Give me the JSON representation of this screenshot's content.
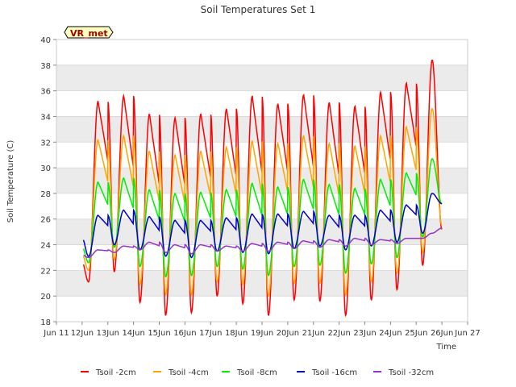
{
  "chart_data": {
    "type": "line",
    "title": "Soil Temperatures Set 1",
    "xlabel": "Time",
    "ylabel": "Soil Temperature (C)",
    "site_label": "VR_met",
    "xlim": [
      "Jun 11",
      "Jun 27"
    ],
    "ylim": [
      18,
      40
    ],
    "x_ticks": [
      "Jun 11",
      "12Jun",
      "13Jun",
      "14Jun",
      "15Jun",
      "16Jun",
      "17Jun",
      "18Jun",
      "19Jun",
      "20Jun",
      "21Jun",
      "22Jun",
      "23Jun",
      "24Jun",
      "25Jun",
      "26Jun",
      "Jun 27"
    ],
    "y_ticks": [
      18,
      20,
      22,
      24,
      26,
      28,
      30,
      32,
      34,
      36,
      38,
      40
    ],
    "grid": true,
    "legend_position": "bottom",
    "series": [
      {
        "name": "Tsoil -2cm",
        "color": "#ff0000",
        "daily_max": [
          35.2,
          35.6,
          34.2,
          33.9,
          34.2,
          34.6,
          35.6,
          35.0,
          35.7,
          35.1,
          34.8,
          35.9,
          36.6,
          38.4
        ],
        "daily_min": [
          21.1,
          21.9,
          19.5,
          18.5,
          18.7,
          20.0,
          19.4,
          18.5,
          19.7,
          19.6,
          18.5,
          19.7,
          20.5,
          22.4
        ],
        "start": 22.6,
        "end": 25.2
      },
      {
        "name": "Tsoil -4cm",
        "color": "#ffa500",
        "daily_max": [
          32.2,
          32.5,
          31.3,
          31.0,
          31.3,
          31.6,
          32.1,
          31.9,
          32.5,
          31.9,
          31.7,
          32.5,
          33.2,
          34.6
        ],
        "daily_min": [
          22.0,
          22.8,
          20.9,
          20.1,
          20.1,
          21.1,
          20.9,
          20.0,
          21.0,
          21.0,
          20.1,
          21.1,
          21.8,
          23.4
        ],
        "start": 23.2,
        "end": 25.5
      },
      {
        "name": "Tsoil -8cm",
        "color": "#00ee00",
        "daily_max": [
          28.9,
          29.2,
          28.3,
          28.0,
          28.1,
          28.3,
          28.8,
          28.5,
          29.1,
          28.7,
          28.4,
          29.1,
          29.6,
          30.7
        ],
        "daily_min": [
          22.6,
          23.8,
          22.3,
          21.5,
          21.6,
          22.3,
          22.1,
          21.6,
          22.3,
          22.4,
          21.8,
          22.5,
          23.0,
          24.6
        ],
        "start": 23.8,
        "end": 27.2
      },
      {
        "name": "Tsoil -16cm",
        "color": "#0000cc",
        "daily_max": [
          26.3,
          26.7,
          26.2,
          25.9,
          25.9,
          26.1,
          26.4,
          26.4,
          26.6,
          26.3,
          26.3,
          26.7,
          27.1,
          28.0
        ],
        "daily_min": [
          23.1,
          24.0,
          23.6,
          23.1,
          23.0,
          23.5,
          23.4,
          23.3,
          23.7,
          23.9,
          23.6,
          23.9,
          24.2,
          24.9
        ],
        "start": 24.5,
        "end": 27.2
      },
      {
        "name": "Tsoil -32cm",
        "color": "#9932cc",
        "daily_max": [
          23.6,
          23.9,
          24.2,
          24.0,
          24.0,
          23.9,
          24.1,
          24.2,
          24.3,
          24.4,
          24.5,
          24.4,
          24.5,
          24.9
        ],
        "daily_min": [
          23.0,
          23.4,
          23.6,
          23.4,
          23.3,
          23.5,
          23.5,
          23.5,
          23.7,
          23.8,
          23.9,
          24.0,
          24.1,
          24.5
        ],
        "start": 23.2,
        "end": 25.3
      }
    ]
  }
}
